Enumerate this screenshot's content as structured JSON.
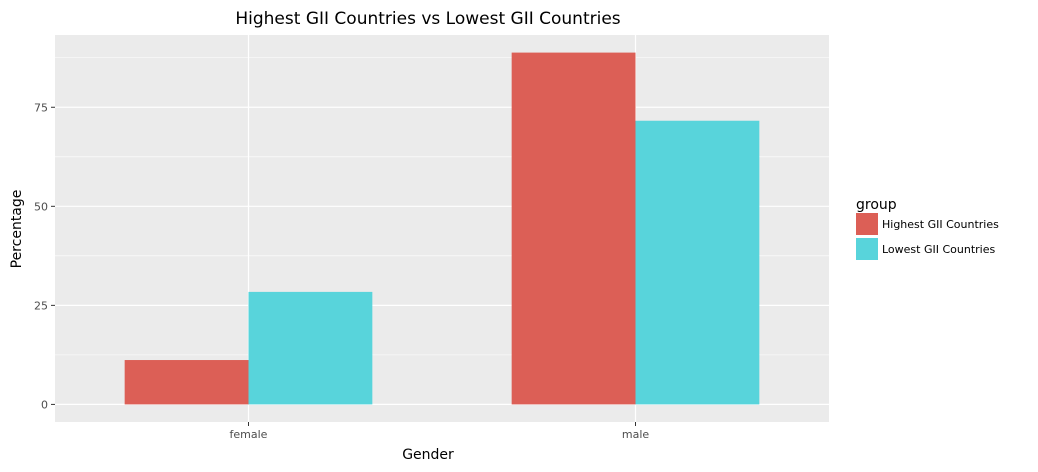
{
  "chart_data": {
    "type": "bar",
    "title": "Highest GII Countries vs Lowest GII Countries",
    "xlabel": "Gender",
    "ylabel": "Percentage",
    "categories": [
      "female",
      "male"
    ],
    "series": [
      {
        "name": "Highest GII Countries",
        "color": "#dc5f56",
        "values": [
          11.2,
          88.8
        ]
      },
      {
        "name": "Lowest GII Countries",
        "color": "#58d4db",
        "values": [
          28.4,
          71.6
        ]
      }
    ],
    "yticks": [
      0,
      25,
      50,
      75
    ],
    "ylim": [
      -4.44,
      93.24
    ],
    "grid": true,
    "panel_background": "#ebebeb",
    "legend": {
      "title": "group",
      "position": "right"
    }
  }
}
